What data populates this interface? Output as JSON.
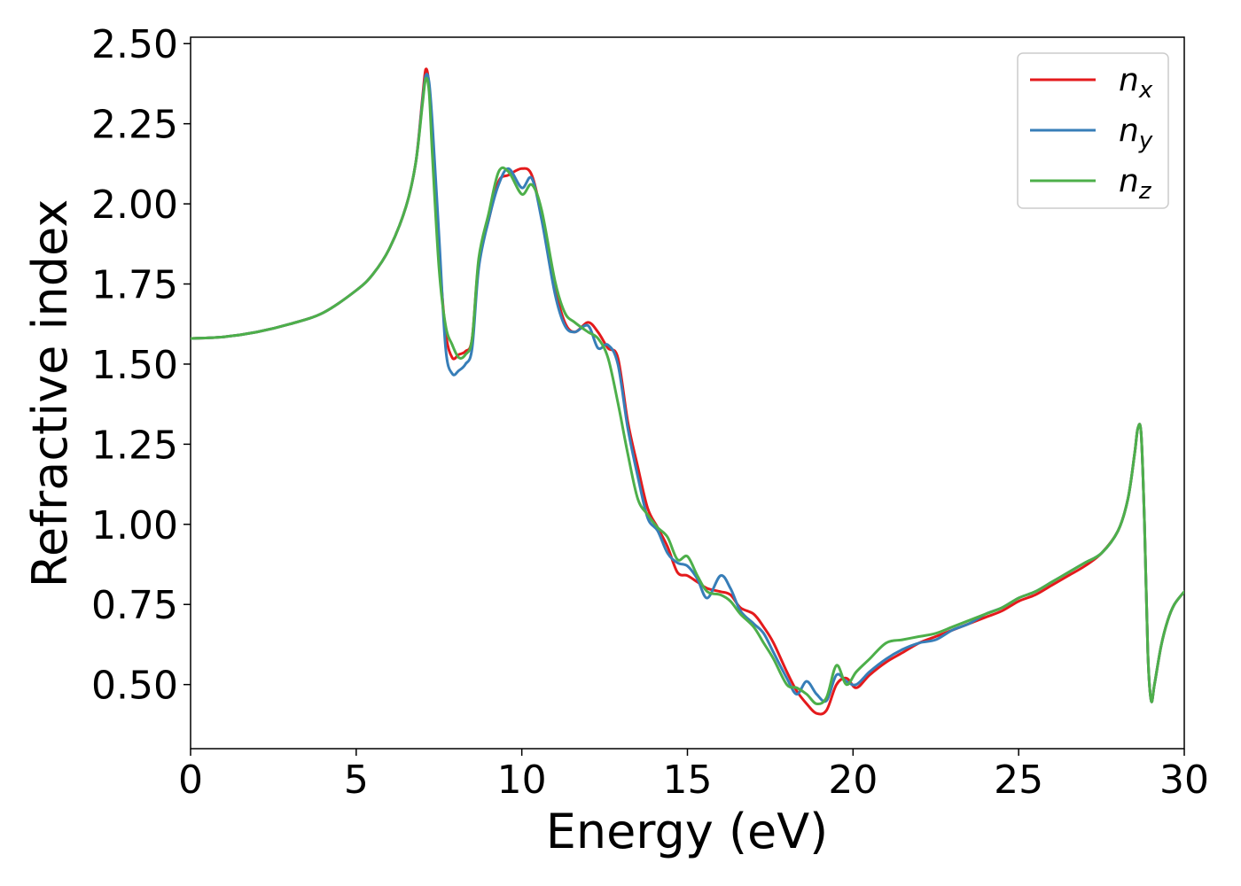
{
  "chart_data": {
    "type": "line",
    "title": "",
    "xlabel": "Energy (eV)",
    "ylabel": "Refractive index",
    "xlim": [
      0,
      30
    ],
    "ylim": [
      0.3,
      2.52
    ],
    "xticks": [
      0,
      5,
      10,
      15,
      20,
      25,
      30
    ],
    "xtick_labels": [
      "0",
      "5",
      "10",
      "15",
      "20",
      "25",
      "30"
    ],
    "yticks": [
      0.5,
      0.75,
      1.0,
      1.25,
      1.5,
      1.75,
      2.0,
      2.25,
      2.5
    ],
    "ytick_labels": [
      "0.50",
      "0.75",
      "1.00",
      "1.25",
      "1.50",
      "1.75",
      "2.00",
      "2.25",
      "2.50"
    ],
    "grid": false,
    "legend_position": "top-right",
    "series": [
      {
        "name": "n_x",
        "legend_main": "n",
        "legend_sub": "x",
        "color": "#e41a1c",
        "x": [
          0,
          1,
          2,
          3,
          4,
          5,
          5.5,
          6,
          6.5,
          6.8,
          7.0,
          7.1,
          7.2,
          7.3,
          7.5,
          7.7,
          7.9,
          8.1,
          8.3,
          8.5,
          8.7,
          9.0,
          9.3,
          9.6,
          10.0,
          10.3,
          10.6,
          11.0,
          11.3,
          11.6,
          12.0,
          12.3,
          12.6,
          12.9,
          13.2,
          13.5,
          13.8,
          14.1,
          14.4,
          14.7,
          15.0,
          15.3,
          15.6,
          16.0,
          16.3,
          16.6,
          17.0,
          17.3,
          17.6,
          18.0,
          18.3,
          18.6,
          18.9,
          19.2,
          19.5,
          19.8,
          20.1,
          20.5,
          21.0,
          21.5,
          22.0,
          22.5,
          23.0,
          23.5,
          24.0,
          24.5,
          25.0,
          25.5,
          26.0,
          26.5,
          27.0,
          27.5,
          28.0,
          28.3,
          28.5,
          28.6,
          28.7,
          28.8,
          28.9,
          29.0,
          29.1,
          29.3,
          29.5,
          29.7,
          30.0
        ],
        "y": [
          1.58,
          1.585,
          1.6,
          1.625,
          1.66,
          1.73,
          1.78,
          1.86,
          1.99,
          2.13,
          2.33,
          2.42,
          2.37,
          2.2,
          1.85,
          1.6,
          1.52,
          1.53,
          1.54,
          1.58,
          1.82,
          1.95,
          2.07,
          2.09,
          2.11,
          2.09,
          1.96,
          1.74,
          1.63,
          1.6,
          1.63,
          1.6,
          1.55,
          1.52,
          1.32,
          1.18,
          1.05,
          0.99,
          0.93,
          0.85,
          0.84,
          0.82,
          0.8,
          0.79,
          0.78,
          0.74,
          0.72,
          0.68,
          0.63,
          0.54,
          0.48,
          0.44,
          0.41,
          0.42,
          0.5,
          0.52,
          0.49,
          0.53,
          0.57,
          0.6,
          0.63,
          0.65,
          0.67,
          0.69,
          0.71,
          0.73,
          0.76,
          0.78,
          0.81,
          0.84,
          0.87,
          0.91,
          0.98,
          1.08,
          1.22,
          1.3,
          1.28,
          1.0,
          0.6,
          0.45,
          0.5,
          0.62,
          0.7,
          0.75,
          0.79
        ]
      },
      {
        "name": "n_y",
        "legend_main": "n",
        "legend_sub": "y",
        "color": "#377eb8",
        "x": [
          0,
          1,
          2,
          3,
          4,
          5,
          5.5,
          6,
          6.5,
          6.8,
          7.0,
          7.1,
          7.2,
          7.3,
          7.5,
          7.7,
          7.9,
          8.1,
          8.3,
          8.5,
          8.7,
          9.0,
          9.3,
          9.6,
          10.0,
          10.3,
          10.6,
          11.0,
          11.3,
          11.6,
          12.0,
          12.3,
          12.6,
          12.9,
          13.2,
          13.5,
          13.8,
          14.1,
          14.4,
          14.7,
          15.0,
          15.3,
          15.6,
          16.0,
          16.3,
          16.6,
          17.0,
          17.3,
          17.6,
          18.0,
          18.3,
          18.6,
          18.9,
          19.2,
          19.5,
          19.8,
          20.1,
          20.5,
          21.0,
          21.5,
          22.0,
          22.5,
          23.0,
          23.5,
          24.0,
          24.5,
          25.0,
          25.5,
          26.0,
          26.5,
          27.0,
          27.5,
          28.0,
          28.3,
          28.5,
          28.6,
          28.7,
          28.8,
          28.9,
          29.0,
          29.1,
          29.3,
          29.5,
          29.7,
          30.0
        ],
        "y": [
          1.58,
          1.585,
          1.6,
          1.625,
          1.66,
          1.73,
          1.78,
          1.86,
          1.99,
          2.13,
          2.32,
          2.4,
          2.38,
          2.25,
          1.9,
          1.55,
          1.47,
          1.48,
          1.5,
          1.55,
          1.8,
          1.95,
          2.06,
          2.11,
          2.05,
          2.08,
          1.95,
          1.72,
          1.62,
          1.6,
          1.62,
          1.55,
          1.56,
          1.5,
          1.3,
          1.15,
          1.02,
          0.98,
          0.91,
          0.88,
          0.87,
          0.83,
          0.77,
          0.84,
          0.8,
          0.73,
          0.69,
          0.66,
          0.6,
          0.52,
          0.47,
          0.51,
          0.47,
          0.45,
          0.53,
          0.51,
          0.5,
          0.54,
          0.58,
          0.61,
          0.63,
          0.64,
          0.67,
          0.69,
          0.72,
          0.74,
          0.77,
          0.79,
          0.82,
          0.85,
          0.88,
          0.91,
          0.98,
          1.08,
          1.22,
          1.3,
          1.28,
          1.0,
          0.6,
          0.45,
          0.5,
          0.62,
          0.7,
          0.75,
          0.79
        ]
      },
      {
        "name": "n_z",
        "legend_main": "n",
        "legend_sub": "z",
        "color": "#4daf4a",
        "x": [
          0,
          1,
          2,
          3,
          4,
          5,
          5.5,
          6,
          6.5,
          6.8,
          7.0,
          7.1,
          7.2,
          7.3,
          7.5,
          7.7,
          7.9,
          8.1,
          8.3,
          8.5,
          8.7,
          9.0,
          9.3,
          9.6,
          10.0,
          10.3,
          10.6,
          11.0,
          11.3,
          11.6,
          12.0,
          12.3,
          12.6,
          12.9,
          13.2,
          13.5,
          13.8,
          14.1,
          14.4,
          14.7,
          15.0,
          15.3,
          15.6,
          16.0,
          16.3,
          16.6,
          17.0,
          17.3,
          17.6,
          18.0,
          18.3,
          18.6,
          18.9,
          19.2,
          19.5,
          19.8,
          20.1,
          20.5,
          21.0,
          21.5,
          22.0,
          22.5,
          23.0,
          23.5,
          24.0,
          24.5,
          25.0,
          25.5,
          26.0,
          26.5,
          27.0,
          27.5,
          28.0,
          28.3,
          28.5,
          28.6,
          28.7,
          28.8,
          28.9,
          29.0,
          29.1,
          29.3,
          29.5,
          29.7,
          30.0
        ],
        "y": [
          1.58,
          1.585,
          1.6,
          1.625,
          1.66,
          1.73,
          1.78,
          1.86,
          1.99,
          2.13,
          2.31,
          2.39,
          2.35,
          2.15,
          1.8,
          1.62,
          1.56,
          1.52,
          1.53,
          1.58,
          1.83,
          1.97,
          2.1,
          2.1,
          2.03,
          2.06,
          1.98,
          1.76,
          1.66,
          1.63,
          1.6,
          1.58,
          1.52,
          1.38,
          1.22,
          1.08,
          1.03,
          0.99,
          0.96,
          0.89,
          0.9,
          0.84,
          0.79,
          0.78,
          0.76,
          0.72,
          0.68,
          0.63,
          0.58,
          0.5,
          0.49,
          0.47,
          0.44,
          0.46,
          0.56,
          0.5,
          0.54,
          0.58,
          0.63,
          0.64,
          0.65,
          0.66,
          0.68,
          0.7,
          0.72,
          0.74,
          0.77,
          0.79,
          0.82,
          0.85,
          0.88,
          0.91,
          0.98,
          1.08,
          1.22,
          1.3,
          1.28,
          1.0,
          0.6,
          0.45,
          0.5,
          0.62,
          0.7,
          0.75,
          0.79
        ]
      }
    ]
  }
}
